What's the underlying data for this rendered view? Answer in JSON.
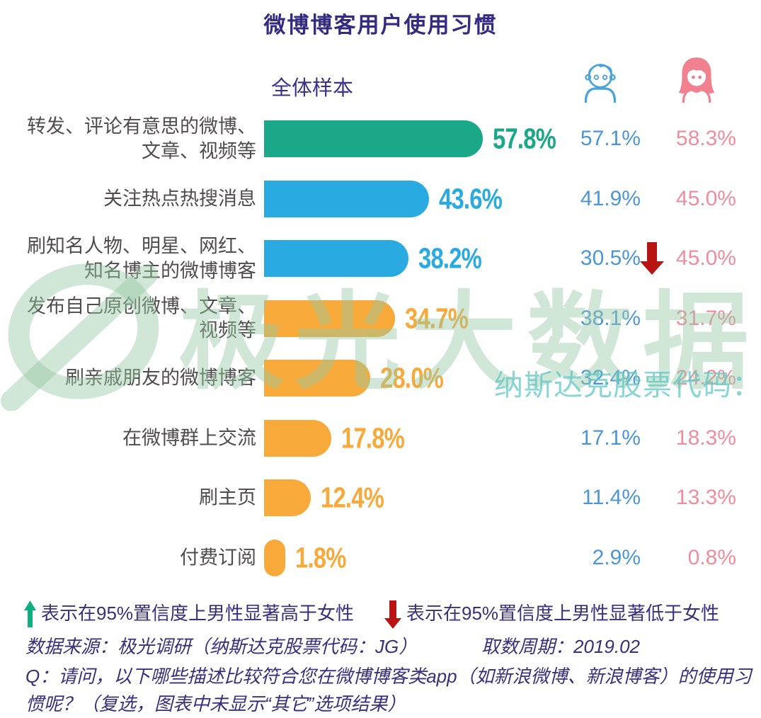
{
  "title": "微博博客用户使用习惯",
  "subtitle": "全体样本",
  "colors": {
    "teal": "#1ba888",
    "blue": "#29abe2",
    "orange": "#f7a93a",
    "male_blue": "#4d96d6",
    "female_pink": "#f08d9d",
    "red": "#b81414",
    "green": "#0faf7e",
    "navy": "#38307e",
    "label_gray": "#4f4c4c"
  },
  "header_icons": {
    "male": "boy-face-icon",
    "female": "girl-face-icon"
  },
  "chart_data": {
    "type": "bar",
    "orientation": "horizontal",
    "unit": "%",
    "title": "微博博客用户使用习惯",
    "subtitle": "全体样本",
    "categories": [
      "转发、评论有意思的微博、\n文章、视频等",
      "关注热点热搜消息",
      "刷知名人物、明星、网红、\n知名博主的微博博客",
      "发布自己原创微博、文章、\n视频等",
      "刷亲戚朋友的微博博客",
      "在微博群上交流",
      "刷主页",
      "付费订阅"
    ],
    "series": [
      {
        "name": "全体样本",
        "values": [
          57.8,
          43.6,
          38.2,
          34.7,
          28.0,
          17.8,
          12.4,
          1.8
        ]
      },
      {
        "name": "男性",
        "values": [
          57.1,
          41.9,
          30.5,
          38.1,
          32.4,
          17.1,
          11.4,
          2.9
        ]
      },
      {
        "name": "女性",
        "values": [
          58.3,
          45.0,
          45.0,
          31.7,
          24.2,
          18.3,
          13.3,
          0.8
        ]
      }
    ],
    "bar_colors": [
      "teal",
      "blue",
      "blue",
      "orange",
      "orange",
      "orange",
      "orange",
      "orange"
    ],
    "significance": [
      null,
      null,
      "male_lower",
      null,
      null,
      null,
      null,
      null
    ],
    "xlim": [
      0,
      60
    ],
    "grid": false,
    "legend_position": "bottom"
  },
  "watermark": {
    "logo": "aurora-swirl-logo",
    "text": "极光大数据",
    "subtext": "纳斯达克股票代码：JG"
  },
  "legend": {
    "up": {
      "icon": "green-up-arrow-icon",
      "text": "表示在95%置信度上男性显著高于女性"
    },
    "down": {
      "icon": "red-down-arrow-icon",
      "text": "表示在95%置信度上男性显著低于女性"
    }
  },
  "footer": {
    "source": "数据来源：极光调研（纳斯达克股票代码：JG）",
    "period": "取数周期：2019.02",
    "question": "Q：请问，以下哪些描述比较符合您在微博博客类app（如新浪微博、新浪博客）的使用习惯呢？（复选，图表中未显示“其它”选项结果）"
  }
}
